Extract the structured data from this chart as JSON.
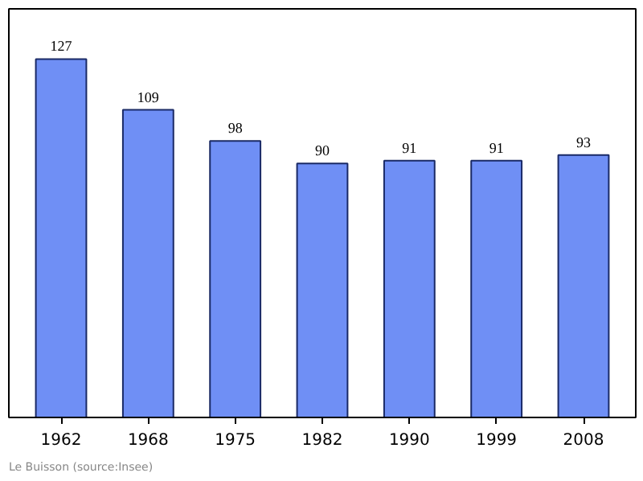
{
  "chart_data": {
    "type": "bar",
    "categories": [
      "1962",
      "1968",
      "1975",
      "1982",
      "1990",
      "1999",
      "2008"
    ],
    "values": [
      127,
      109,
      98,
      90,
      91,
      91,
      93
    ],
    "color": "#6f8ff5",
    "data_labels": true,
    "grid": false,
    "annotations": [
      "Le Buisson    (source:Insee)"
    ]
  }
}
